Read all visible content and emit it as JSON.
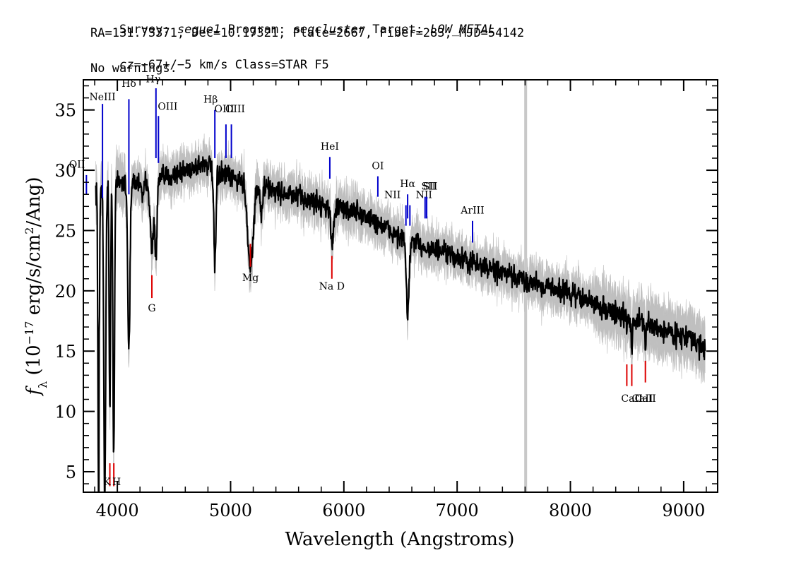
{
  "header": {
    "line1": {
      "survey_label": "Survey: ",
      "survey": "segue1",
      "program_label": " Program: ",
      "program": "segcluster",
      "target_label": " Target: ",
      "target": "LOW_METAL"
    },
    "line2": "RA=131.73371, Dec=10.17321, Plate=2667, Fiber=283, MJD=54142",
    "line3": {
      "cz_label": "cz",
      "cz_value": "=−67+/−5",
      "cz_unit": " km/s Class=STAR F5"
    },
    "line4": "No warnings."
  },
  "chart_data": {
    "type": "line",
    "title": "",
    "xlabel": "Wavelength (Angstroms)",
    "ylabel": "f_λ (10^-17 erg/s/cm^2/Ang)",
    "ylabel_parts": {
      "f": "f",
      "sub": "λ",
      "pre": " (10",
      "exp1": "−17",
      "mid": " erg/s/cm",
      "exp2": "2",
      "post": "/Ang)"
    },
    "xlim": [
      3700,
      9300
    ],
    "ylim": [
      3.3,
      37.5
    ],
    "x_ticks": [
      4000,
      5000,
      6000,
      7000,
      8000,
      9000
    ],
    "y_ticks": [
      5,
      10,
      15,
      20,
      25,
      30,
      35
    ],
    "grid": false,
    "colors": {
      "spectrum": "#000000",
      "error_band": "#bfbfbf",
      "emission": "#0000cc",
      "absorption": "#dd0000",
      "skyline": "#c8c8c8"
    },
    "sky_line_x": 7605,
    "spectrum": {
      "x_range": [
        3810,
        9190
      ],
      "anchors": [
        [
          3810,
          28.4
        ],
        [
          3900,
          28.8
        ],
        [
          4000,
          29.0
        ],
        [
          4200,
          29.0
        ],
        [
          4400,
          29.3
        ],
        [
          4600,
          30.0
        ],
        [
          4780,
          30.6
        ],
        [
          4900,
          29.7
        ],
        [
          5100,
          29.1
        ],
        [
          5300,
          28.6
        ],
        [
          5500,
          28.0
        ],
        [
          5700,
          27.5
        ],
        [
          5900,
          26.9
        ],
        [
          6100,
          26.6
        ],
        [
          6300,
          25.6
        ],
        [
          6500,
          24.4
        ],
        [
          6700,
          23.7
        ],
        [
          6900,
          23.1
        ],
        [
          7100,
          22.4
        ],
        [
          7300,
          21.8
        ],
        [
          7500,
          21.1
        ],
        [
          7700,
          20.6
        ],
        [
          7900,
          20.1
        ],
        [
          8100,
          19.4
        ],
        [
          8300,
          18.5
        ],
        [
          8500,
          17.8
        ],
        [
          8700,
          17.1
        ],
        [
          8900,
          16.5
        ],
        [
          9050,
          16.1
        ],
        [
          9190,
          15.0
        ]
      ],
      "absorption_features": [
        [
          3835,
          26.8,
          6
        ],
        [
          3889,
          27.0,
          8
        ],
        [
          3934,
          19.0,
          6
        ],
        [
          3968,
          22.8,
          7
        ],
        [
          4102,
          13.7,
          10
        ],
        [
          4227,
          1.5,
          8
        ],
        [
          4304,
          5.8,
          14
        ],
        [
          4341,
          6.2,
          10
        ],
        [
          4861,
          7.6,
          10
        ],
        [
          5175,
          7.0,
          24
        ],
        [
          5270,
          2.5,
          10
        ],
        [
          5895,
          3.0,
          12
        ],
        [
          6563,
          6.2,
          12
        ],
        [
          8498,
          1.0,
          5
        ],
        [
          8542,
          2.6,
          5
        ],
        [
          8662,
          1.8,
          5
        ]
      ],
      "min_points": [
        [
          3841,
          16.6
        ],
        [
          3937,
          10.4
        ],
        [
          3968,
          6.9
        ],
        [
          4102,
          15.2
        ],
        [
          4861,
          21.5
        ],
        [
          6563,
          17.6
        ]
      ]
    },
    "emission_lines": [
      {
        "label": "OII",
        "wave": 3727,
        "y1": 28.0,
        "y2": 29.6,
        "ly": 30.2,
        "anchor": "end",
        "lx": -2
      },
      {
        "label": "NeIII",
        "wave": 3869,
        "y1": 27.7,
        "y2": 35.5,
        "ly": 35.8,
        "anchor": "middle",
        "lx": 0
      },
      {
        "label": "Hδ",
        "wave": 4102,
        "y1": 28.0,
        "y2": 35.9,
        "ly": 36.9,
        "anchor": "middle",
        "lx": 0
      },
      {
        "label": "Hγ",
        "wave": 4341,
        "y1": 31.0,
        "y2": 36.8,
        "ly": 37.3,
        "anchor": "middle",
        "lx": -4
      },
      {
        "label": "OIII",
        "wave": 4363,
        "y1": 30.6,
        "y2": 34.5,
        "ly": 35.0,
        "anchor": "start",
        "lx": -1
      },
      {
        "label": "Hβ",
        "wave": 4861,
        "y1": 31.0,
        "y2": 35.0,
        "ly": 35.6,
        "anchor": "middle",
        "lx": -6
      },
      {
        "label": "OIII",
        "wave": 4959,
        "y1": 31.0,
        "y2": 33.8,
        "ly": 34.8,
        "anchor": "middle",
        "lx": 13
      },
      {
        "label": "OIII",
        "wave": 5007,
        "y1": 31.0,
        "y2": 33.8,
        "ly": 34.8,
        "anchor": "middle",
        "lx": -10
      },
      {
        "label": "HeI",
        "wave": 5876,
        "y1": 29.3,
        "y2": 31.1,
        "ly": 31.7,
        "anchor": "middle",
        "lx": 0
      },
      {
        "label": "OI",
        "wave": 6300,
        "y1": 27.8,
        "y2": 29.5,
        "ly": 30.1,
        "anchor": "middle",
        "lx": 0
      },
      {
        "label": "NII",
        "wave": 6548,
        "y1": 25.4,
        "y2": 27.1,
        "ly": 27.7,
        "anchor": "middle",
        "lx": -19
      },
      {
        "label": "Hα",
        "wave": 6563,
        "y1": 26.0,
        "y2": 28.0,
        "ly": 28.6,
        "anchor": "middle",
        "lx": 0
      },
      {
        "label": "NII",
        "wave": 6583,
        "y1": 25.4,
        "y2": 27.1,
        "ly": 27.7,
        "anchor": "middle",
        "lx": 20
      },
      {
        "label": "SII",
        "wave": 6717,
        "y1": 26.0,
        "y2": 27.8,
        "ly": 28.4,
        "anchor": "middle",
        "lx": 5
      },
      {
        "label": "SII",
        "wave": 6731,
        "y1": 26.0,
        "y2": 27.8,
        "ly": 28.4,
        "anchor": "middle",
        "lx": 5
      },
      {
        "label": "ArIII",
        "wave": 7136,
        "y1": 24.0,
        "y2": 25.8,
        "ly": 26.4,
        "anchor": "middle",
        "lx": 0
      }
    ],
    "absorption_lines": [
      {
        "label": "K",
        "wave": 3934,
        "y1": 3.8,
        "y2": 5.7,
        "ly": 3.9,
        "anchor": "middle",
        "lx": -4
      },
      {
        "label": "H",
        "wave": 3969,
        "y1": 3.8,
        "y2": 5.7,
        "ly": 3.9,
        "anchor": "middle",
        "lx": 4
      },
      {
        "label": "G",
        "wave": 4305,
        "y1": 19.4,
        "y2": 21.3,
        "ly": 18.3,
        "anchor": "middle",
        "lx": 0
      },
      {
        "label": "Mg",
        "wave": 5175,
        "y1": 22.0,
        "y2": 23.9,
        "ly": 20.8,
        "anchor": "middle",
        "lx": 0
      },
      {
        "label": "Na  D",
        "wave": 5894,
        "y1": 21.0,
        "y2": 22.9,
        "ly": 20.1,
        "anchor": "middle",
        "lx": 0
      },
      {
        "label": "CaII",
        "wave": 8498,
        "y1": 12.1,
        "y2": 13.9,
        "ly": 10.8,
        "anchor": "middle",
        "lx": 22
      },
      {
        "label": "CaII",
        "wave": 8542,
        "y1": 12.1,
        "y2": 13.9,
        "ly": 10.8,
        "anchor": "middle",
        "lx": 0
      },
      {
        "label": "CaII",
        "wave": 8662,
        "y1": 12.4,
        "y2": 14.2,
        "ly": 10.8,
        "anchor": "middle",
        "lx": 0
      }
    ]
  }
}
